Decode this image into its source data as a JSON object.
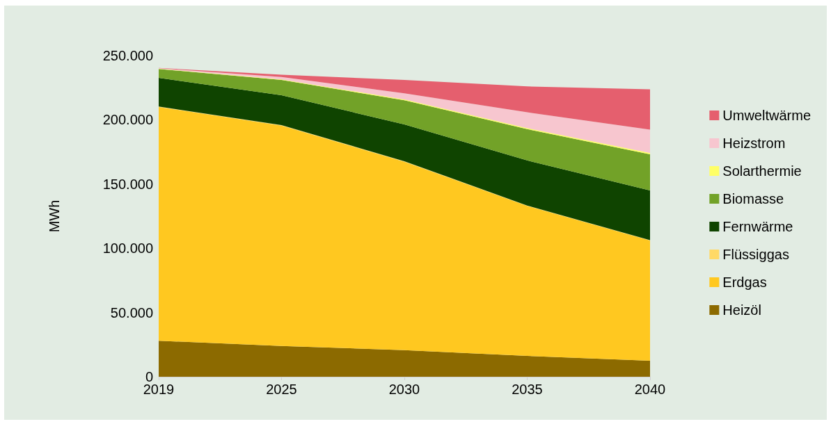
{
  "chart_data": {
    "type": "area",
    "stacked": true,
    "ylabel": "MWh",
    "categories": [
      "2019",
      "2025",
      "2030",
      "2035",
      "2040"
    ],
    "ylim": [
      0,
      250000
    ],
    "yticks": [
      0,
      {
        "value": 50000,
        "label": "50.000"
      },
      {
        "value": 100000,
        "label": "100.000"
      },
      {
        "value": 150000,
        "label": "150.000"
      },
      {
        "value": 200000,
        "label": "200.000"
      },
      {
        "value": 250000,
        "label": "250.000"
      }
    ],
    "grid": false,
    "legend": "right",
    "marker": "none",
    "series": [
      {
        "name": "Heizöl",
        "color": "#8c6a00",
        "values": [
          28000,
          24000,
          20700,
          16200,
          12400
        ]
      },
      {
        "name": "Erdgas",
        "color": "#ffc820",
        "values": [
          182000,
          171500,
          146700,
          116800,
          93600
        ]
      },
      {
        "name": "Flüssiggas",
        "color": "#ffd966",
        "values": [
          400,
          400,
          400,
          300,
          300
        ]
      },
      {
        "name": "Fernwärme",
        "color": "#0f4400",
        "values": [
          22300,
          23300,
          28600,
          35100,
          38700
        ]
      },
      {
        "name": "Biomasse",
        "color": "#72a228",
        "values": [
          6900,
          11800,
          18900,
          24400,
          28200
        ]
      },
      {
        "name": "Solarthermie",
        "color": "#ffff66",
        "values": [
          300,
          500,
          600,
          800,
          1000
        ]
      },
      {
        "name": "Heizstrom",
        "color": "#f7c6cf",
        "values": [
          300,
          1800,
          4800,
          12300,
          18200
        ]
      },
      {
        "name": "Umweltwärme",
        "color": "#e55f6e",
        "values": [
          200,
          1800,
          10300,
          20100,
          31400
        ]
      }
    ]
  }
}
